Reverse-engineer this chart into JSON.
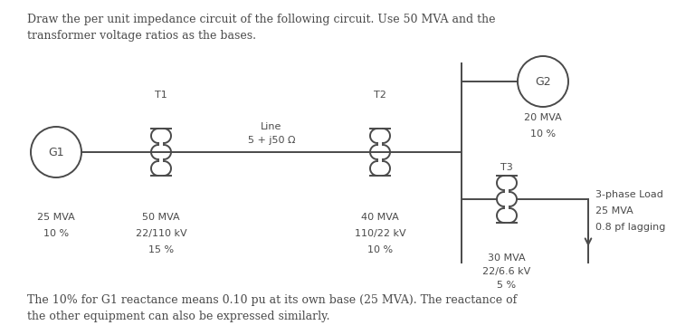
{
  "title1": "Draw the per unit impedance circuit of the following circuit. Use 50 MVA and the",
  "title2": "transformer voltage ratios as the bases.",
  "footer1": "The 10% for G1 reactance means 0.10 pu at its own base (25 MVA). The reactance of",
  "footer2": "the other equipment can also be expressed similarly.",
  "bg_color": "#ffffff",
  "line_color": "#4a4a4a",
  "text_color": "#4a4a4a",
  "G1_label": "G1",
  "G1_specs": [
    "25 MVA",
    "10 %"
  ],
  "T1_label": "T1",
  "T1_specs": [
    "50 MVA",
    "22/110 kV",
    "15 %"
  ],
  "line_label": "Line",
  "line_spec": "5 + j50 Ω",
  "T2_label": "T2",
  "T2_specs": [
    "40 MVA",
    "110/22 kV",
    "10 %"
  ],
  "G2_label": "G2",
  "G2_specs": [
    "20 MVA",
    "10 %"
  ],
  "T3_label": "T3",
  "T3_specs": [
    "30 MVA",
    "22/6.6 kV",
    "5 %"
  ],
  "load_specs": [
    "3-phase Load",
    "25 MVA",
    "0.8 pf lagging"
  ]
}
